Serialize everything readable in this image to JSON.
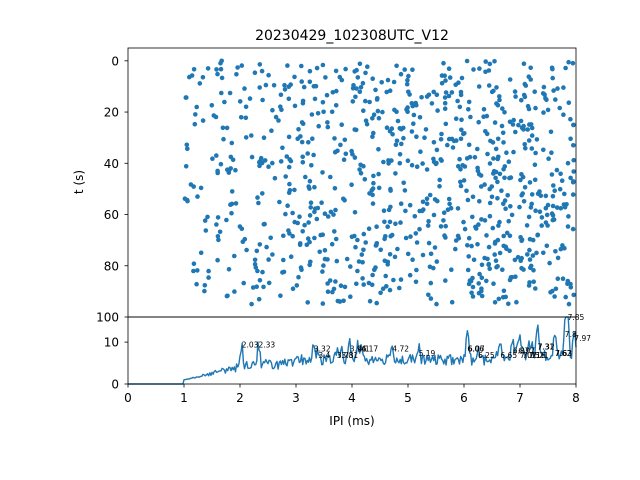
{
  "chart_data": [
    {
      "type": "scatter",
      "title": "20230429_102308UTC_V12",
      "xlabel": "",
      "ylabel": "t (s)",
      "xlim": [
        0,
        8
      ],
      "ylim": [
        100,
        -5
      ],
      "y_inverted": true,
      "y_ticks": [
        "0",
        "20",
        "40",
        "60",
        "80",
        "100"
      ],
      "point_color": "#1f77b4",
      "point_count": 900,
      "x_spread": [
        1.0,
        8.0
      ],
      "t_spread": [
        0,
        95
      ],
      "note": "raster of inter-pulse intervals versus time"
    },
    {
      "type": "line",
      "xlabel": "IPI (ms)",
      "ylabel": "",
      "xlim": [
        0,
        8
      ],
      "ylim": [
        0,
        16
      ],
      "x_ticks": [
        "0",
        "1",
        "2",
        "3",
        "4",
        "5",
        "6",
        "7",
        "8"
      ],
      "y_ticks": [
        "0",
        "10"
      ],
      "line_color": "#1f77b4",
      "peaks": [
        {
          "x": 2.03,
          "y": 8.5,
          "label": "2.03"
        },
        {
          "x": 2.33,
          "y": 8.5,
          "label": "2.33"
        },
        {
          "x": 3.32,
          "y": 7.5,
          "label": "3.32"
        },
        {
          "x": 3.4,
          "y": 6.0,
          "label": "3.4"
        },
        {
          "x": 3.73,
          "y": 6.0,
          "label": "3.73"
        },
        {
          "x": 3.81,
          "y": 6.0,
          "label": "3.81"
        },
        {
          "x": 3.96,
          "y": 7.5,
          "label": "3.96"
        },
        {
          "x": 4.1,
          "y": 7.5,
          "label": "4.1"
        },
        {
          "x": 4.17,
          "y": 7.5,
          "label": "4.17"
        },
        {
          "x": 4.72,
          "y": 7.5,
          "label": "4.72"
        },
        {
          "x": 5.19,
          "y": 6.5,
          "label": "5.19"
        },
        {
          "x": 6.06,
          "y": 7.5,
          "label": "6.06"
        },
        {
          "x": 6.07,
          "y": 7.5,
          "label": "6.07"
        },
        {
          "x": 6.25,
          "y": 6.0,
          "label": "6.25"
        },
        {
          "x": 6.65,
          "y": 6.0,
          "label": "6.65"
        },
        {
          "x": 6.87,
          "y": 7.0,
          "label": "6.87"
        },
        {
          "x": 6.97,
          "y": 7.0,
          "label": "6.97"
        },
        {
          "x": 7.0,
          "y": 6.0,
          "label": "7.0"
        },
        {
          "x": 7.05,
          "y": 6.0,
          "label": "7.05"
        },
        {
          "x": 7.16,
          "y": 6.0,
          "label": "7.16"
        },
        {
          "x": 7.21,
          "y": 6.0,
          "label": "7.21"
        },
        {
          "x": 7.31,
          "y": 8.0,
          "label": "7.31"
        },
        {
          "x": 7.32,
          "y": 8.0,
          "label": "7.32"
        },
        {
          "x": 7.62,
          "y": 6.5,
          "label": "7.62"
        },
        {
          "x": 7.63,
          "y": 6.5,
          "label": "7.63"
        },
        {
          "x": 7.85,
          "y": 15.0,
          "label": "7.85"
        },
        {
          "x": 7.8,
          "y": 11.0,
          "label": "7.8"
        },
        {
          "x": 7.97,
          "y": 10.0,
          "label": "7.97"
        }
      ]
    }
  ]
}
